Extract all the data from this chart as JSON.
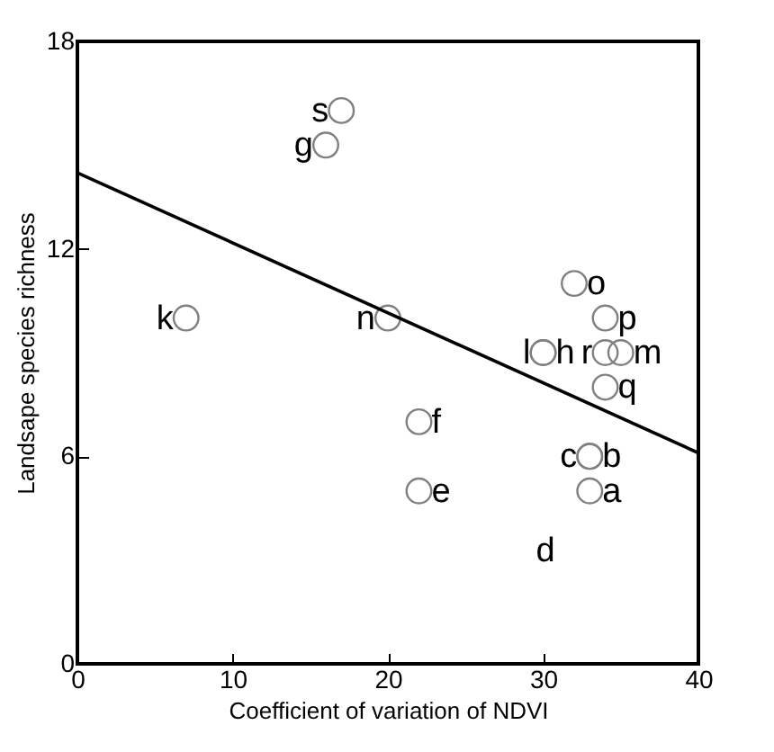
{
  "chart_data": {
    "type": "scatter",
    "xlabel": "Coefficient of variation of NDVI",
    "ylabel": "Landsape species richness",
    "xlim": [
      0,
      40
    ],
    "ylim": [
      0,
      18
    ],
    "xticks": [
      0,
      10,
      20,
      30,
      40
    ],
    "yticks": [
      0,
      6,
      12,
      18
    ],
    "series": [
      {
        "color": "#808080",
        "marker": "circle",
        "x": [
          17,
          16,
          7,
          20,
          30,
          34,
          33
        ],
        "values": [
          16,
          15,
          10,
          10,
          9,
          9,
          6
        ],
        "value_labels": [
          "s",
          "g",
          "k",
          "n",
          "l",
          "r",
          "c"
        ]
      },
      {
        "color": "#808080",
        "marker": "circle",
        "x": [
          32,
          34,
          35,
          30,
          34,
          22,
          22,
          33,
          33
        ],
        "values": [
          11,
          10,
          9,
          9,
          8,
          7,
          5,
          6,
          5
        ],
        "value_labels": [
          "o",
          "p",
          "m",
          "h",
          "q",
          "f",
          "e",
          "b",
          "a"
        ]
      },
      {
        "type": "line",
        "color": "#000000",
        "x": [
          0,
          40
        ],
        "values": [
          14.2,
          6.1
        ]
      }
    ],
    "annotations": [
      "d"
    ]
  }
}
